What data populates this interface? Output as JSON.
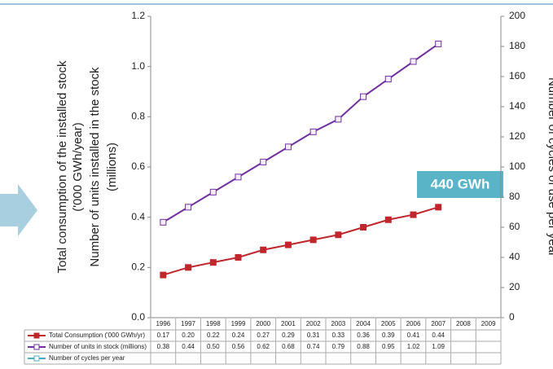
{
  "chart_data": {
    "type": "line",
    "ylabel": [
      "Total consumption of the installed stock",
      "('000 GWh/year)",
      "Number of units installed in the stock",
      "(millions)"
    ],
    "y2label": "Number of cycles of use per year",
    "annotation": "440 GWh",
    "categories": [
      "1996",
      "1997",
      "1998",
      "1999",
      "2000",
      "2001",
      "2002",
      "2003",
      "2004",
      "2005",
      "2006",
      "2007",
      "2008",
      "2009"
    ],
    "series": [
      {
        "name": "Total Consumption ('000 GWh/yr)",
        "color": "#c0272d",
        "values": [
          0.17,
          0.2,
          0.22,
          0.24,
          0.27,
          0.29,
          0.31,
          0.33,
          0.36,
          0.39,
          0.41,
          0.44,
          null,
          null
        ],
        "value_labels": [
          "0.17",
          "0.20",
          "0.22",
          "0.24",
          "0.27",
          "0.29",
          "0.31",
          "0.33",
          "0.36",
          "0.39",
          "0.41",
          "0.44",
          null,
          null
        ]
      },
      {
        "name": "Number of units in stock (millions)",
        "color": "#7030a0",
        "values": [
          0.38,
          0.44,
          0.5,
          0.56,
          0.62,
          0.68,
          0.74,
          0.79,
          0.88,
          0.95,
          1.02,
          1.09,
          null,
          null
        ],
        "value_labels": [
          "0.38",
          "0.44",
          "0.50",
          "0.56",
          "0.62",
          "0.68",
          "0.74",
          "0.79",
          "0.88",
          "0.95",
          "1.02",
          "1.09",
          null,
          null
        ]
      },
      {
        "name": "Number of cycles per year",
        "color": "#4bacc6",
        "axis": "y2",
        "values": [
          null,
          null,
          null,
          null,
          null,
          null,
          null,
          null,
          null,
          null,
          null,
          null,
          null,
          null
        ]
      }
    ],
    "ylim": [
      0,
      1.2
    ],
    "yticks": [
      {
        "value": 0,
        "label": "0.0"
      },
      0.2,
      0.4,
      0.6,
      0.8,
      {
        "value": 1,
        "label": "1.0"
      },
      1.2
    ],
    "y2lim": [
      0,
      200
    ],
    "y2ticks": [
      0,
      20,
      40,
      60,
      80,
      100,
      120,
      140,
      160,
      180,
      200
    ],
    "grid": false
  }
}
